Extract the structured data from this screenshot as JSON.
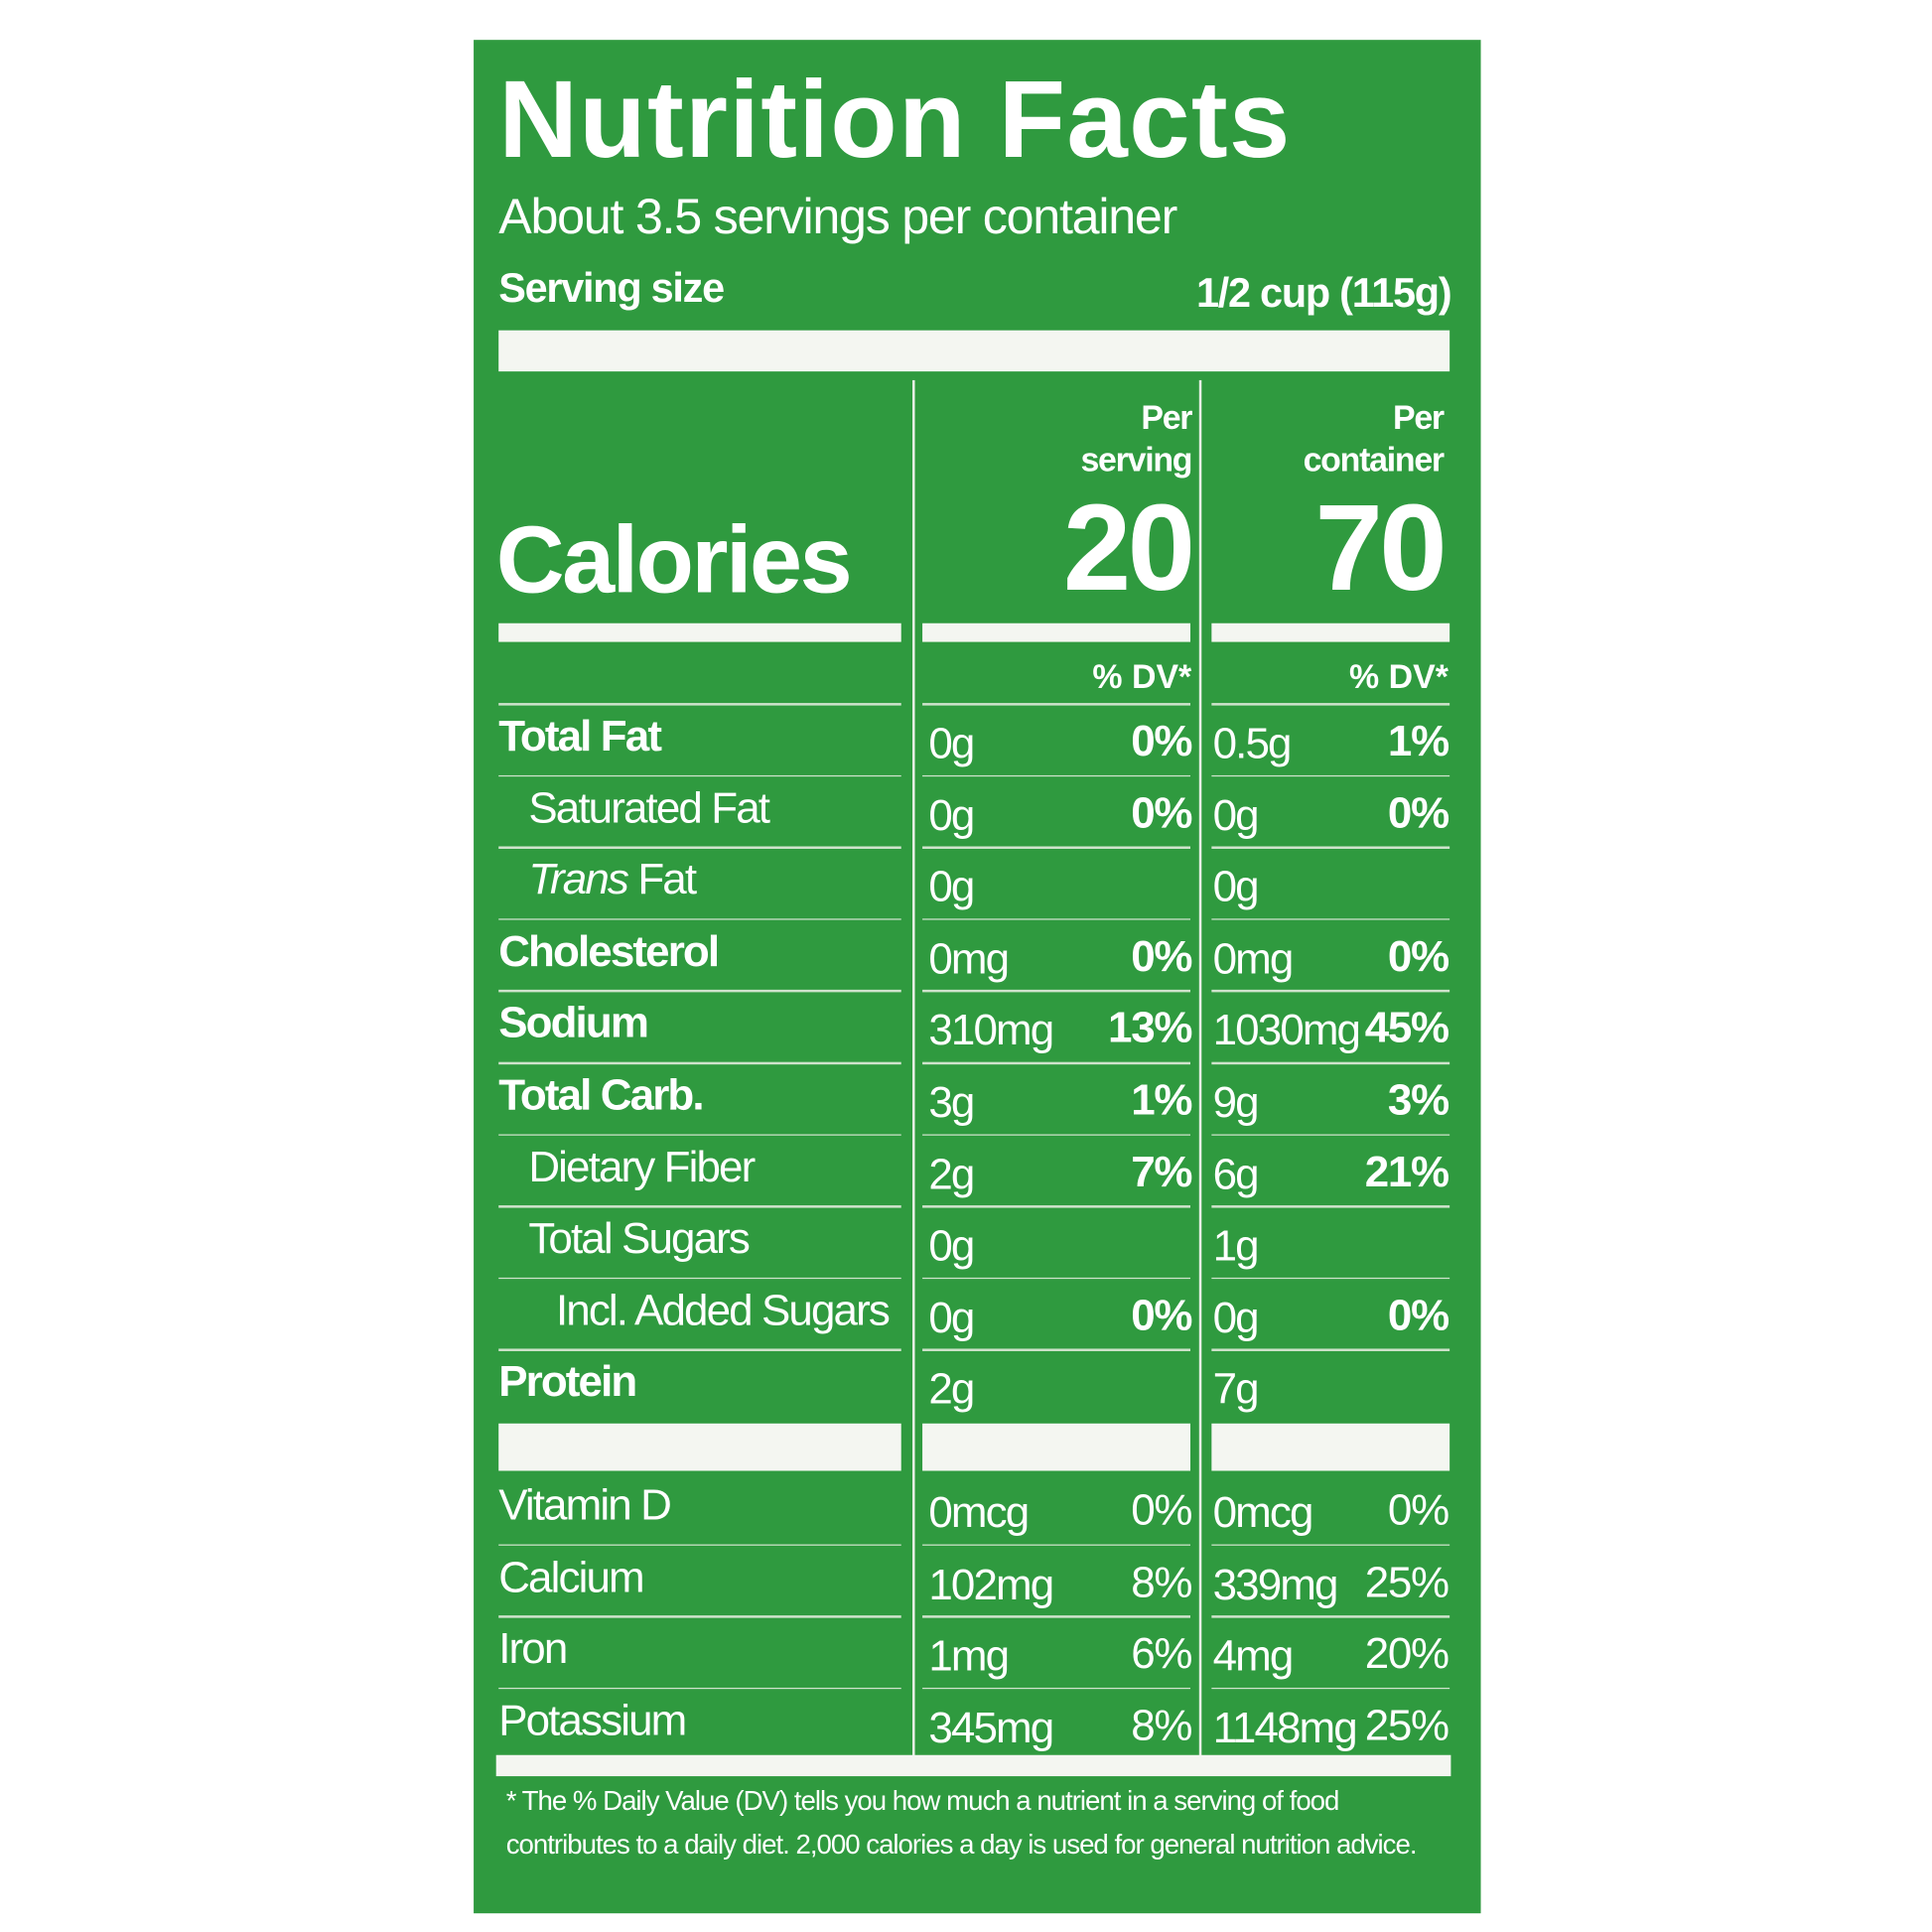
{
  "title": "Nutrition Facts",
  "servings_per_container": "About 3.5 servings per container",
  "serving_size": {
    "label": "Serving size",
    "value": "1/2 cup (115g)"
  },
  "columns": {
    "serving": {
      "line1": "Per",
      "line2": "serving"
    },
    "container": {
      "line1": "Per",
      "line2": "container"
    }
  },
  "calories": {
    "label": "Calories",
    "per_serving": "20",
    "per_container": "70"
  },
  "dv_header": "% DV*",
  "nutrients": [
    {
      "name": "Total Fat",
      "style": "bold",
      "serving_amount": "0g",
      "serving_dv": "0%",
      "container_amount": "0.5g",
      "container_dv": "1%"
    },
    {
      "name": "Saturated Fat",
      "style": "indent1",
      "serving_amount": "0g",
      "serving_dv": "0%",
      "container_amount": "0g",
      "container_dv": "0%"
    },
    {
      "name_italic": "Trans",
      "name": " Fat",
      "style": "indent1",
      "serving_amount": "0g",
      "serving_dv": "",
      "container_amount": "0g",
      "container_dv": ""
    },
    {
      "name": "Cholesterol",
      "style": "bold",
      "serving_amount": "0mg",
      "serving_dv": "0%",
      "container_amount": "0mg",
      "container_dv": "0%"
    },
    {
      "name": "Sodium",
      "style": "bold",
      "serving_amount": "310mg",
      "serving_dv": "13%",
      "container_amount": "1030mg",
      "container_dv": "45%"
    },
    {
      "name": "Total Carb.",
      "style": "bold",
      "serving_amount": "3g",
      "serving_dv": "1%",
      "container_amount": "9g",
      "container_dv": "3%"
    },
    {
      "name": "Dietary Fiber",
      "style": "indent1",
      "serving_amount": "2g",
      "serving_dv": "7%",
      "container_amount": "6g",
      "container_dv": "21%"
    },
    {
      "name": "Total Sugars",
      "style": "indent1",
      "serving_amount": "0g",
      "serving_dv": "",
      "container_amount": "1g",
      "container_dv": ""
    },
    {
      "name": "Incl. Added Sugars",
      "style": "indent2",
      "serving_amount": "0g",
      "serving_dv": "0%",
      "container_amount": "0g",
      "container_dv": "0%"
    },
    {
      "name": "Protein",
      "style": "bold",
      "serving_amount": "2g",
      "serving_dv": "",
      "container_amount": "7g",
      "container_dv": ""
    }
  ],
  "vitamins": [
    {
      "name": "Vitamin D",
      "serving_amount": "0mcg",
      "serving_dv": "0%",
      "container_amount": "0mcg",
      "container_dv": "0%"
    },
    {
      "name": "Calcium",
      "serving_amount": "102mg",
      "serving_dv": "8%",
      "container_amount": "339mg",
      "container_dv": "25%"
    },
    {
      "name": "Iron",
      "serving_amount": "1mg",
      "serving_dv": "6%",
      "container_amount": "4mg",
      "container_dv": "20%"
    },
    {
      "name": "Potassium",
      "serving_amount": "345mg",
      "serving_dv": "8%",
      "container_amount": "1148mg",
      "container_dv": "25%"
    }
  ],
  "footnote": "* The % Daily Value (DV) tells you how much a nutrient in a serving of food contributes to a daily diet. 2,000 calories a day is used for general nutrition advice.",
  "colors": {
    "panel": "#2f9a3f",
    "text": "#ffffff"
  }
}
